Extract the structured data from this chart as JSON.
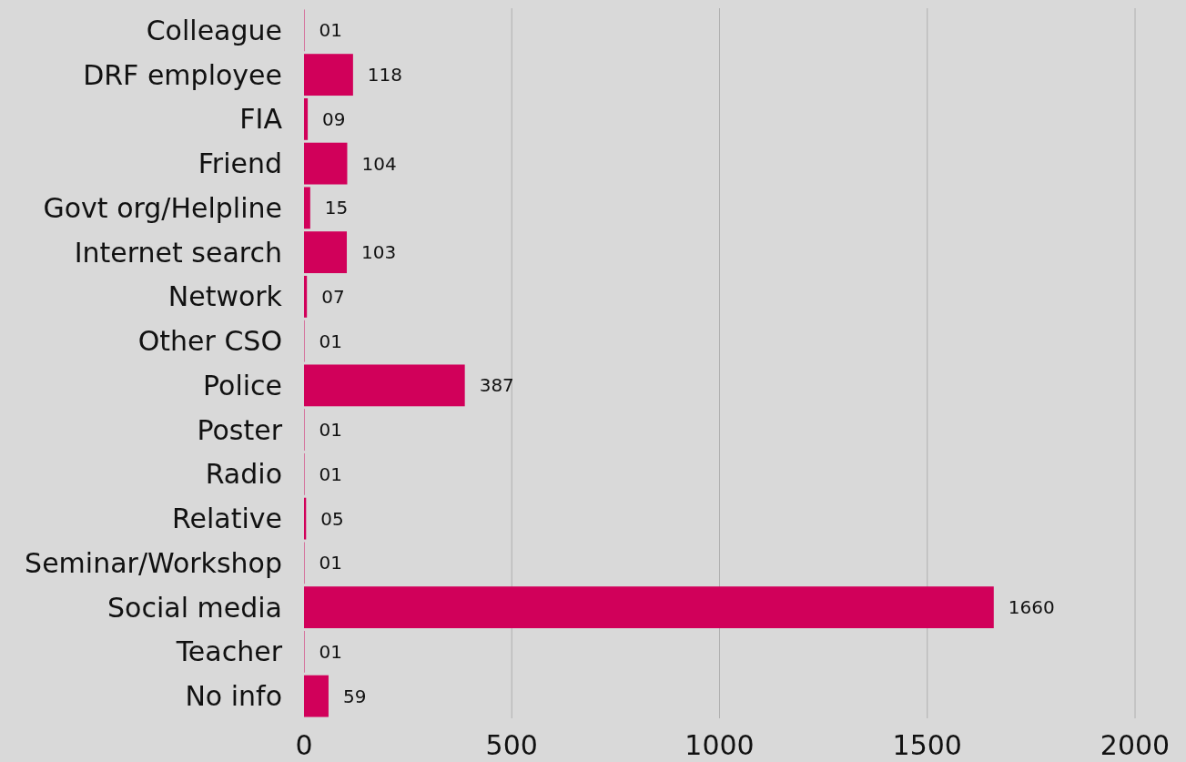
{
  "chart_data": {
    "type": "bar",
    "orientation": "horizontal",
    "categories": [
      "Colleague",
      "DRF employee",
      "FIA",
      "Friend",
      "Govt org/Helpline",
      "Internet search",
      "Network",
      "Other CSO",
      "Police",
      "Poster",
      "Radio",
      "Relative",
      "Seminar/Workshop",
      "Social media",
      "Teacher",
      "No info"
    ],
    "values": [
      1,
      118,
      9,
      104,
      15,
      103,
      7,
      1,
      387,
      1,
      1,
      5,
      1,
      1660,
      1,
      59
    ],
    "value_labels": [
      "01",
      "118",
      "09",
      "104",
      "15",
      "103",
      "07",
      "01",
      "387",
      "01",
      "01",
      "05",
      "01",
      "1660",
      "01",
      "59"
    ],
    "color": "#d1005a",
    "xlim": [
      0,
      2000
    ],
    "xticks": [
      0,
      500,
      1000,
      1500,
      2000
    ],
    "grid": "x"
  }
}
